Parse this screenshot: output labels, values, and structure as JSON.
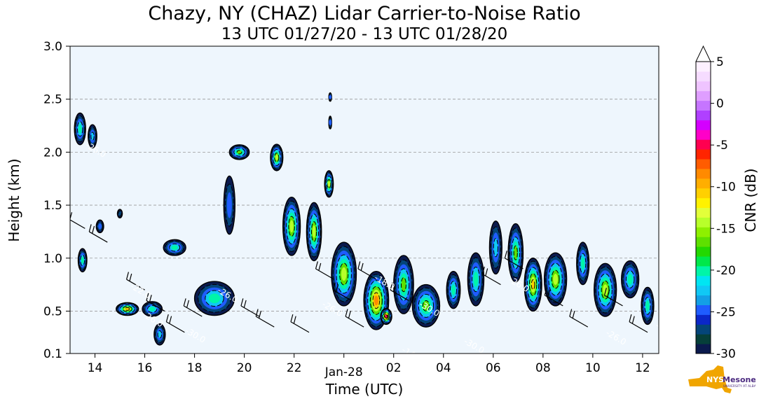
{
  "chart_data": {
    "type": "heatmap",
    "title": "Chazy, NY (CHAZ) Lidar Carrier-to-Noise Ratio",
    "subtitle": "13 UTC 01/27/20 - 13 UTC 01/28/20",
    "xlabel": "Time (UTC)",
    "ylabel": "Height (km)",
    "xlim": [
      13,
      36.65
    ],
    "ylim": [
      0.1,
      3.0
    ],
    "x_ticks": [
      {
        "x": 14,
        "label": "14"
      },
      {
        "x": 16,
        "label": "16"
      },
      {
        "x": 18,
        "label": "18"
      },
      {
        "x": 20,
        "label": "20"
      },
      {
        "x": 22,
        "label": "22"
      },
      {
        "x": 24,
        "label": "Jan-28"
      },
      {
        "x": 26,
        "label": "02"
      },
      {
        "x": 28,
        "label": "04"
      },
      {
        "x": 30,
        "label": "06"
      },
      {
        "x": 32,
        "label": "08"
      },
      {
        "x": 34,
        "label": "10"
      },
      {
        "x": 36,
        "label": "12"
      }
    ],
    "y_ticks": [
      {
        "y": 0.1,
        "label": "0.1"
      },
      {
        "y": 0.5,
        "label": "0.5"
      },
      {
        "y": 1.0,
        "label": "1.0"
      },
      {
        "y": 1.5,
        "label": "1.5"
      },
      {
        "y": 2.0,
        "label": "2.0"
      },
      {
        "y": 2.5,
        "label": "2.5"
      },
      {
        "y": 3.0,
        "label": "3.0"
      }
    ],
    "grid": "horizontal dashed",
    "colorbar": {
      "label": "CNR (dB)",
      "range": [
        -30,
        5
      ],
      "extend": "max",
      "ticks": [
        {
          "v": 5,
          "label": "5"
        },
        {
          "v": 0,
          "label": "0"
        },
        {
          "v": -5,
          "label": "-5"
        },
        {
          "v": -10,
          "label": "-10"
        },
        {
          "v": -15,
          "label": "-15"
        },
        {
          "v": -20,
          "label": "-20"
        },
        {
          "v": -25,
          "label": "-25"
        },
        {
          "v": -30,
          "label": "-30"
        }
      ],
      "colors": [
        "#0b1a4d",
        "#063f3a",
        "#04457a",
        "#0b27c9",
        "#1f5cff",
        "#139fe6",
        "#10c8f5",
        "#00e5f2",
        "#00f5a8",
        "#00e84a",
        "#23d800",
        "#5ee000",
        "#8ef000",
        "#b8ff2a",
        "#e2ff3a",
        "#fff200",
        "#ffd000",
        "#ffae00",
        "#ff8a00",
        "#ff5c00",
        "#ff2400",
        "#ff0050",
        "#ff00c8",
        "#d400ff",
        "#b040ff",
        "#c675ff",
        "#df9eff",
        "#efc4ff",
        "#f6dcff",
        "#fdf0ff"
      ]
    },
    "background_color": "#eef6fd",
    "echo_regions": [
      {
        "x": 13.4,
        "y": 2.22,
        "w": 0.45,
        "h": 0.3,
        "peak": -20
      },
      {
        "x": 13.9,
        "y": 2.15,
        "w": 0.35,
        "h": 0.22,
        "peak": -21
      },
      {
        "x": 13.5,
        "y": 0.98,
        "w": 0.35,
        "h": 0.22,
        "peak": -20
      },
      {
        "x": 14.2,
        "y": 1.3,
        "w": 0.3,
        "h": 0.12,
        "peak": -25
      },
      {
        "x": 15.0,
        "y": 1.42,
        "w": 0.2,
        "h": 0.08,
        "peak": -26
      },
      {
        "x": 15.3,
        "y": 0.52,
        "w": 0.9,
        "h": 0.12,
        "peak": -10
      },
      {
        "x": 16.3,
        "y": 0.52,
        "w": 0.8,
        "h": 0.14,
        "peak": -18
      },
      {
        "x": 16.6,
        "y": 0.28,
        "w": 0.45,
        "h": 0.2,
        "peak": -22
      },
      {
        "x": 17.2,
        "y": 1.1,
        "w": 0.9,
        "h": 0.15,
        "peak": -19
      },
      {
        "x": 18.8,
        "y": 0.62,
        "w": 1.6,
        "h": 0.32,
        "peak": -19
      },
      {
        "x": 19.4,
        "y": 1.5,
        "w": 0.45,
        "h": 0.55,
        "peak": -24
      },
      {
        "x": 19.8,
        "y": 2.0,
        "w": 0.8,
        "h": 0.14,
        "peak": -16
      },
      {
        "x": 21.3,
        "y": 1.95,
        "w": 0.5,
        "h": 0.25,
        "peak": -14
      },
      {
        "x": 21.9,
        "y": 1.3,
        "w": 0.7,
        "h": 0.55,
        "peak": -14
      },
      {
        "x": 22.8,
        "y": 1.25,
        "w": 0.6,
        "h": 0.55,
        "peak": -13
      },
      {
        "x": 23.4,
        "y": 1.7,
        "w": 0.35,
        "h": 0.25,
        "peak": -14
      },
      {
        "x": 24.0,
        "y": 0.85,
        "w": 1.0,
        "h": 0.6,
        "peak": -13
      },
      {
        "x": 25.3,
        "y": 0.6,
        "w": 1.0,
        "h": 0.55,
        "peak": -8
      },
      {
        "x": 25.7,
        "y": 0.45,
        "w": 0.45,
        "h": 0.15,
        "peak": -3
      },
      {
        "x": 26.4,
        "y": 0.75,
        "w": 0.8,
        "h": 0.55,
        "peak": -15
      },
      {
        "x": 27.3,
        "y": 0.55,
        "w": 1.1,
        "h": 0.4,
        "peak": -15
      },
      {
        "x": 28.4,
        "y": 0.7,
        "w": 0.55,
        "h": 0.35,
        "peak": -20
      },
      {
        "x": 29.3,
        "y": 0.8,
        "w": 0.65,
        "h": 0.5,
        "peak": -18
      },
      {
        "x": 30.1,
        "y": 1.1,
        "w": 0.5,
        "h": 0.5,
        "peak": -21
      },
      {
        "x": 30.9,
        "y": 1.05,
        "w": 0.6,
        "h": 0.55,
        "peak": -17
      },
      {
        "x": 31.6,
        "y": 0.75,
        "w": 0.7,
        "h": 0.5,
        "peak": -10
      },
      {
        "x": 32.5,
        "y": 0.8,
        "w": 0.9,
        "h": 0.5,
        "peak": -13
      },
      {
        "x": 33.6,
        "y": 0.95,
        "w": 0.5,
        "h": 0.4,
        "peak": -20
      },
      {
        "x": 34.5,
        "y": 0.7,
        "w": 0.9,
        "h": 0.5,
        "peak": -13
      },
      {
        "x": 35.5,
        "y": 0.8,
        "w": 0.7,
        "h": 0.35,
        "peak": -18
      },
      {
        "x": 36.2,
        "y": 0.55,
        "w": 0.5,
        "h": 0.35,
        "peak": -19
      },
      {
        "x": 23.45,
        "y": 2.28,
        "w": 0.08,
        "h": 0.12,
        "peak": -24
      },
      {
        "x": 23.45,
        "y": 2.52,
        "w": 0.06,
        "h": 0.08,
        "peak": -25
      }
    ],
    "contour_labels": [
      {
        "x": 13.6,
        "y": 2.05,
        "text": "-26.0"
      },
      {
        "x": 15.9,
        "y": 0.45,
        "text": "-26.0"
      },
      {
        "x": 15.4,
        "y": 0.72,
        "text": "-22.0"
      },
      {
        "x": 17.6,
        "y": 0.3,
        "text": "-30.0"
      },
      {
        "x": 18.9,
        "y": 0.68,
        "text": "-26.0"
      },
      {
        "x": 23.1,
        "y": 0.55,
        "text": "-26.0"
      },
      {
        "x": 25.2,
        "y": 0.8,
        "text": "-18.0"
      },
      {
        "x": 26.3,
        "y": 0.12,
        "text": "-14.0"
      },
      {
        "x": 27.0,
        "y": 0.55,
        "text": "-30.0"
      },
      {
        "x": 28.8,
        "y": 0.2,
        "text": "-30.0"
      },
      {
        "x": 30.6,
        "y": 0.78,
        "text": "-26.0"
      },
      {
        "x": 34.5,
        "y": 0.28,
        "text": "-26.0"
      },
      {
        "x": 36.5,
        "y": 0.35,
        "text": "-26.0"
      }
    ],
    "wind_barbs": [
      {
        "x": 13.6,
        "y": 1.28,
        "dir": 300
      },
      {
        "x": 14.5,
        "y": 1.15,
        "dir": 300
      },
      {
        "x": 16.0,
        "y": 0.7,
        "dir": 300
      },
      {
        "x": 16.8,
        "y": 0.5,
        "dir": 300
      },
      {
        "x": 17.6,
        "y": 0.3,
        "dir": 300
      },
      {
        "x": 18.3,
        "y": 0.45,
        "dir": 300
      },
      {
        "x": 20.6,
        "y": 0.45,
        "dir": 300
      },
      {
        "x": 21.2,
        "y": 0.35,
        "dir": 300
      },
      {
        "x": 22.6,
        "y": 0.3,
        "dir": 300
      },
      {
        "x": 23.6,
        "y": 0.8,
        "dir": 300
      },
      {
        "x": 24.3,
        "y": 0.6,
        "dir": 300
      },
      {
        "x": 24.8,
        "y": 0.35,
        "dir": 300
      },
      {
        "x": 25.3,
        "y": 0.8,
        "dir": 300
      },
      {
        "x": 26.6,
        "y": 0.6,
        "dir": 300
      },
      {
        "x": 30.3,
        "y": 0.75,
        "dir": 300
      },
      {
        "x": 31.2,
        "y": 0.9,
        "dir": 300
      },
      {
        "x": 32.8,
        "y": 0.55,
        "dir": 300
      },
      {
        "x": 33.8,
        "y": 0.35,
        "dir": 300
      },
      {
        "x": 35.2,
        "y": 0.55,
        "dir": 300
      },
      {
        "x": 36.2,
        "y": 0.3,
        "dir": 300
      }
    ]
  },
  "logo": {
    "text": "NYS",
    "subtext": "Mesonet",
    "tagline": "UNIVERSITY AT ALBANY",
    "color": "#f0a500",
    "accent": "#4b2a80"
  }
}
